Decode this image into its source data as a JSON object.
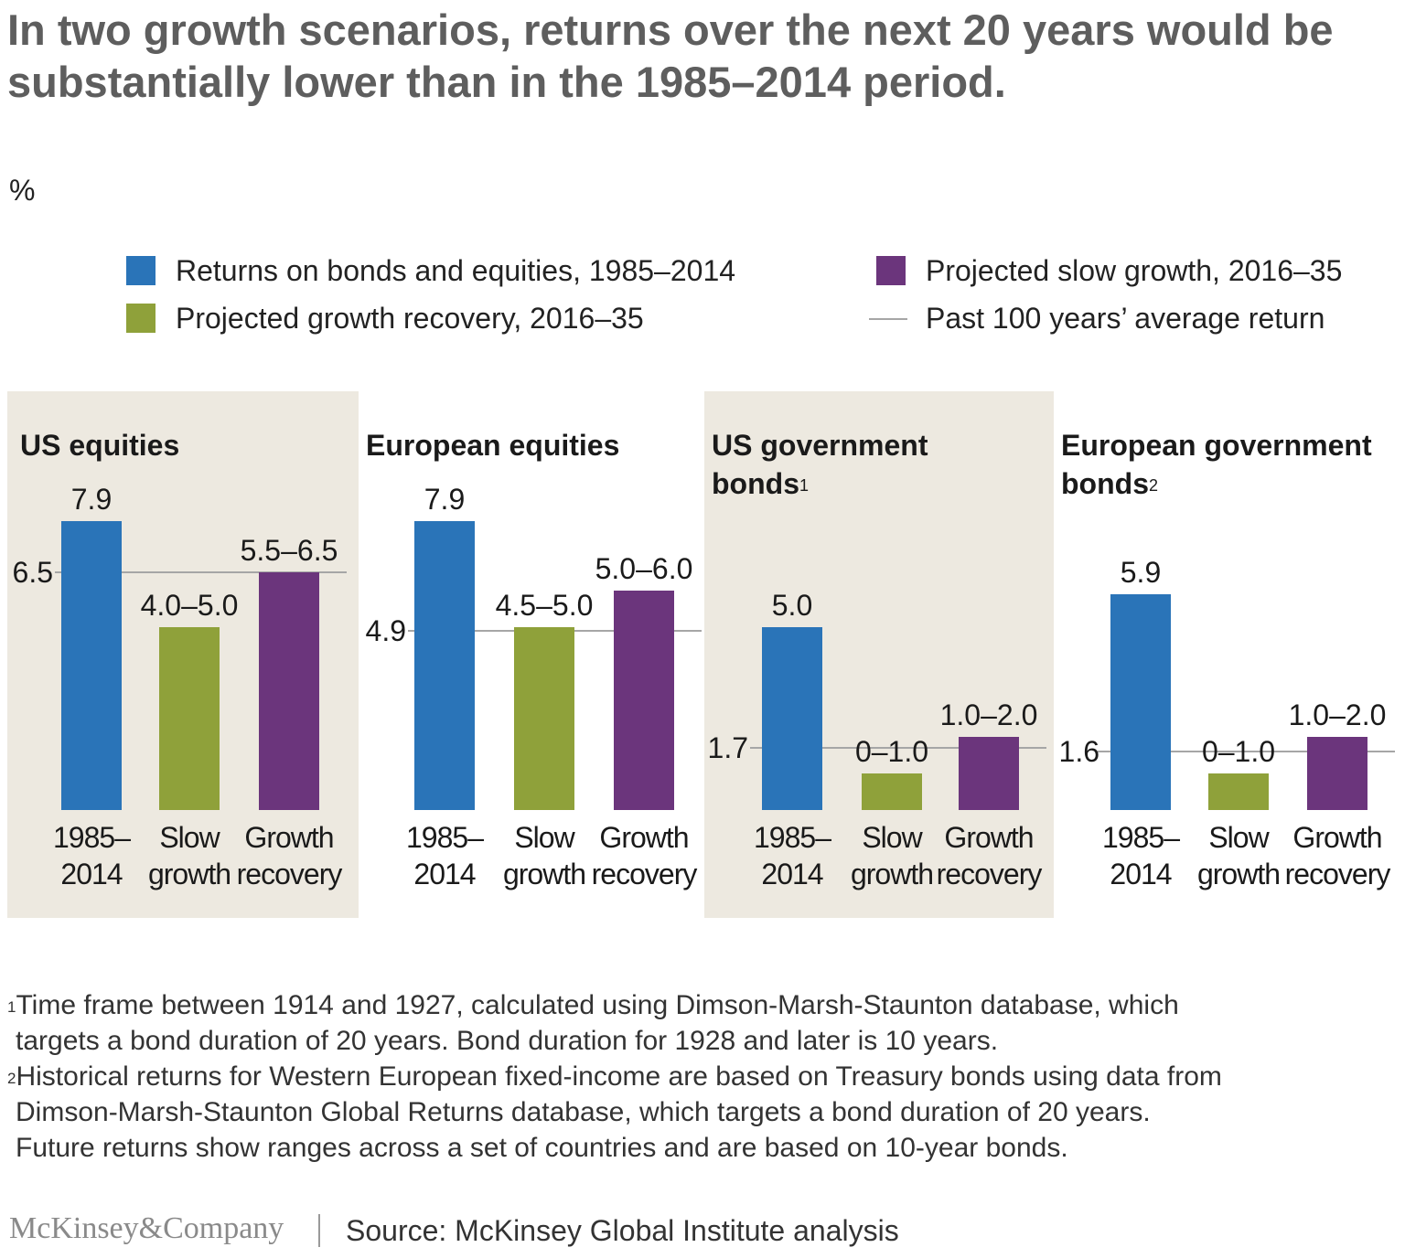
{
  "title": "In two growth scenarios, returns over the next 20 years would be substantially lower than in the 1985–2014 period.",
  "unit": "%",
  "legend": {
    "historical": "Returns on bonds and equities, 1985–2014",
    "slow_growth": "Projected slow growth, 2016–35",
    "growth_recovery": "Projected growth recovery, 2016–35",
    "average": "Past 100 years’ average return"
  },
  "colors": {
    "historical": "#2a74b8",
    "slow_growth": "#8fa13a",
    "growth_recovery": "#6b357c",
    "average_line": "#a6a6a6",
    "panel_shade": "#ede9e0"
  },
  "chart_data": [
    {
      "type": "bar",
      "title": "US equities",
      "title_note": "",
      "categories": [
        "1985–2014",
        "Slow growth",
        "Growth recovery"
      ],
      "values": [
        7.9,
        [
          4.0,
          5.0
        ],
        [
          5.5,
          6.5
        ]
      ],
      "value_labels": [
        "7.9",
        "4.0–5.0",
        "5.5–6.5"
      ],
      "average": 6.5,
      "average_label": "6.5",
      "shaded": true
    },
    {
      "type": "bar",
      "title": "European equities",
      "title_note": "",
      "categories": [
        "1985–2014",
        "Slow growth",
        "Growth recovery"
      ],
      "values": [
        7.9,
        [
          4.5,
          5.0
        ],
        [
          5.0,
          6.0
        ]
      ],
      "value_labels": [
        "7.9",
        "4.5–5.0",
        "5.0–6.0"
      ],
      "average": 4.9,
      "average_label": "4.9",
      "shaded": false
    },
    {
      "type": "bar",
      "title": "US government bonds",
      "title_note": "1",
      "categories": [
        "1985–2014",
        "Slow growth",
        "Growth recovery"
      ],
      "values": [
        5.0,
        [
          0,
          1.0
        ],
        [
          1.0,
          2.0
        ]
      ],
      "value_labels": [
        "5.0",
        "0–1.0",
        "1.0–2.0"
      ],
      "average": 1.7,
      "average_label": "1.7",
      "shaded": true
    },
    {
      "type": "bar",
      "title": "European government bonds",
      "title_note": "2",
      "categories": [
        "1985–2014",
        "Slow growth",
        "Growth recovery"
      ],
      "values": [
        5.9,
        [
          0,
          1.0
        ],
        [
          1.0,
          2.0
        ]
      ],
      "value_labels": [
        "5.9",
        "0–1.0",
        "1.0–2.0"
      ],
      "average": 1.6,
      "average_label": "1.6",
      "shaded": false
    }
  ],
  "footnotes": [
    {
      "marker": "1",
      "lines": [
        "Time frame between 1914 and 1927, calculated using Dimson-Marsh-Staunton database, which",
        "targets a bond duration of 20 years. Bond duration for 1928 and later is 10 years."
      ]
    },
    {
      "marker": "2",
      "lines": [
        "Historical returns for Western European fixed-income are based on Treasury bonds using data from",
        "Dimson-Marsh-Staunton Global Returns database, which targets a bond duration of 20 years.",
        "Future returns show ranges across a set of countries and are based on 10-year bonds."
      ]
    }
  ],
  "brand": "McKinsey&Company",
  "source": "Source: McKinsey Global Institute analysis"
}
